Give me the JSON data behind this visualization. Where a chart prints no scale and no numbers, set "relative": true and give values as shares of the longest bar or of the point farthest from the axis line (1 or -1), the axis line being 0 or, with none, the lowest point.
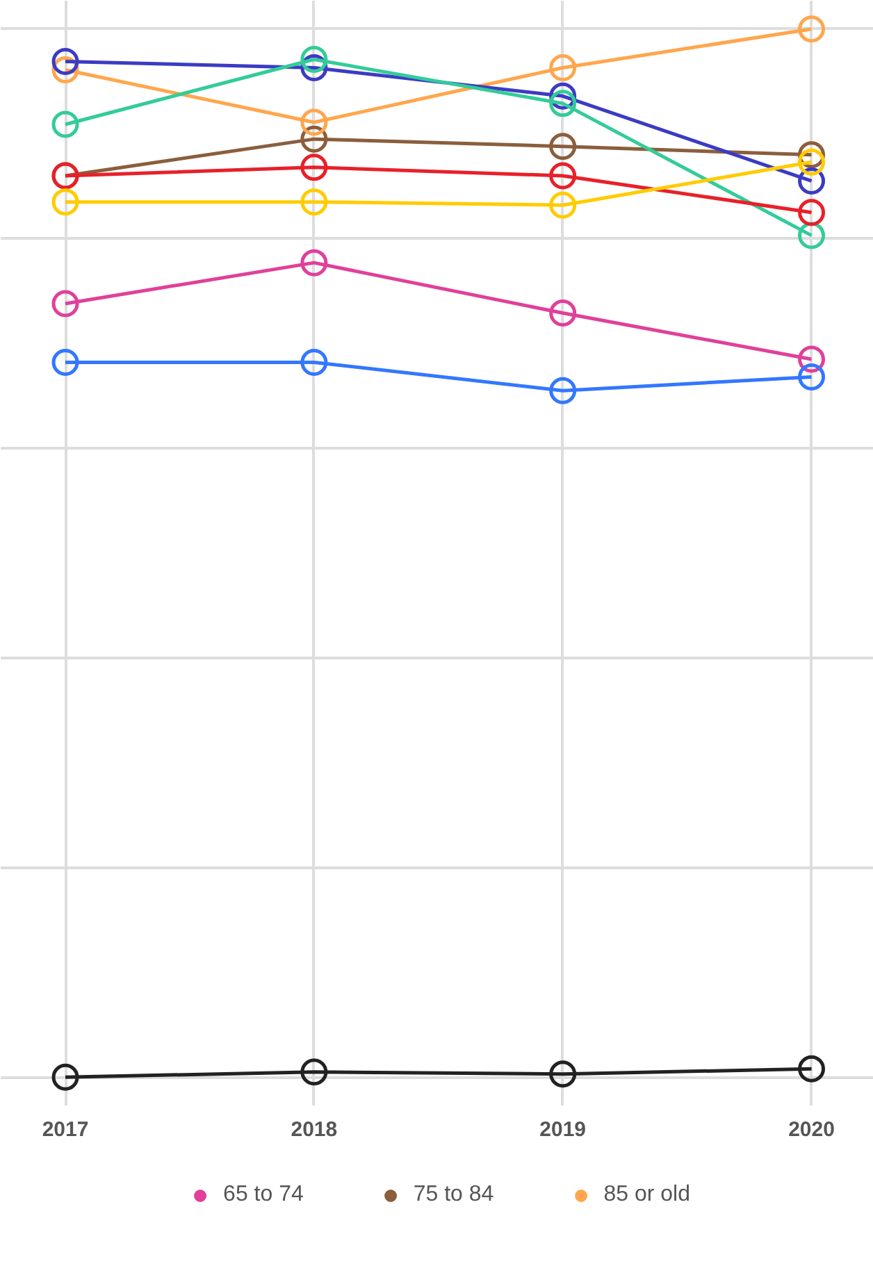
{
  "chart_data": {
    "type": "line",
    "relative": true,
    "x": [
      2017,
      2018,
      2019,
      2020
    ],
    "xlim": [
      2016.74,
      2020.25
    ],
    "xticks": [
      2017,
      2018,
      2019,
      2020
    ],
    "tick_labels": "x",
    "grid": true,
    "legend": "bottom",
    "marker": "circle",
    "line_style": "solid",
    "series": [
      {
        "name": "65 to 74",
        "color": "#e0409a",
        "values": [
          0.738,
          0.777,
          0.729,
          0.685
        ]
      },
      {
        "name": "75 to 84",
        "color": "#8b5e3c",
        "values": [
          0.86,
          0.895,
          0.888,
          0.88
        ]
      },
      {
        "name": "85 or old",
        "color": "#ffa64d",
        "values": [
          0.961,
          0.911,
          0.963,
          1.0
        ]
      },
      {
        "color": "#3b3bc4",
        "values": [
          0.969,
          0.963,
          0.936,
          0.855
        ]
      },
      {
        "color": "#33cc99",
        "values": [
          0.909,
          0.971,
          0.929,
          0.803
        ]
      },
      {
        "color": "#e8202a",
        "values": [
          0.86,
          0.868,
          0.86,
          0.825
        ]
      },
      {
        "color": "#ffcc00",
        "values": [
          0.835,
          0.835,
          0.832,
          0.873
        ]
      },
      {
        "color": "#3377ff",
        "values": [
          0.682,
          0.682,
          0.655,
          0.668
        ]
      },
      {
        "color": "#222222",
        "values": [
          0.0,
          0.005,
          0.003,
          0.008
        ]
      }
    ]
  }
}
